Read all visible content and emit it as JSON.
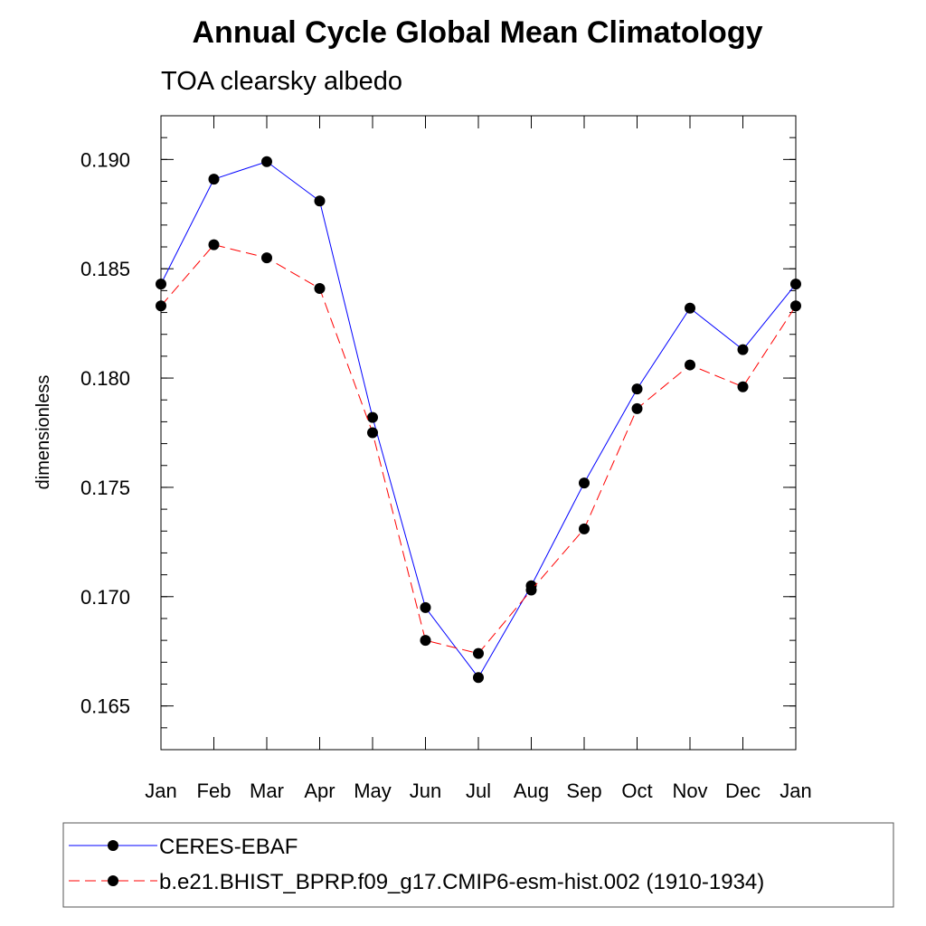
{
  "chart_data": {
    "type": "line",
    "title": "Annual Cycle Global Mean Climatology",
    "subtitle": "TOA clearsky albedo",
    "xlabel": "",
    "ylabel": "dimensionless",
    "categories": [
      "Jan",
      "Feb",
      "Mar",
      "Apr",
      "May",
      "Jun",
      "Jul",
      "Aug",
      "Sep",
      "Oct",
      "Nov",
      "Dec",
      "Jan"
    ],
    "yticks": [
      "0.165",
      "0.170",
      "0.175",
      "0.180",
      "0.185",
      "0.190"
    ],
    "ylim": [
      0.163,
      0.192
    ],
    "grid": false,
    "legend_position": "bottom",
    "series": [
      {
        "name": "CERES-EBAF",
        "color": "#0000ff",
        "line_style": "solid",
        "marker": "filled-circle",
        "values": [
          0.1843,
          0.1891,
          0.1899,
          0.1881,
          0.1782,
          0.1695,
          0.1663,
          0.1705,
          0.1752,
          0.1795,
          0.1832,
          0.1813,
          0.1843
        ]
      },
      {
        "name": "b.e21.BHIST_BPRP.f09_g17.CMIP6-esm-hist.002 (1910-1934)",
        "color": "#ff0000",
        "line_style": "dashed",
        "marker": "filled-circle",
        "values": [
          0.1833,
          0.1861,
          0.1855,
          0.1841,
          0.1775,
          0.168,
          0.1674,
          0.1703,
          0.1731,
          0.1786,
          0.1806,
          0.1796,
          0.1833
        ]
      }
    ]
  }
}
